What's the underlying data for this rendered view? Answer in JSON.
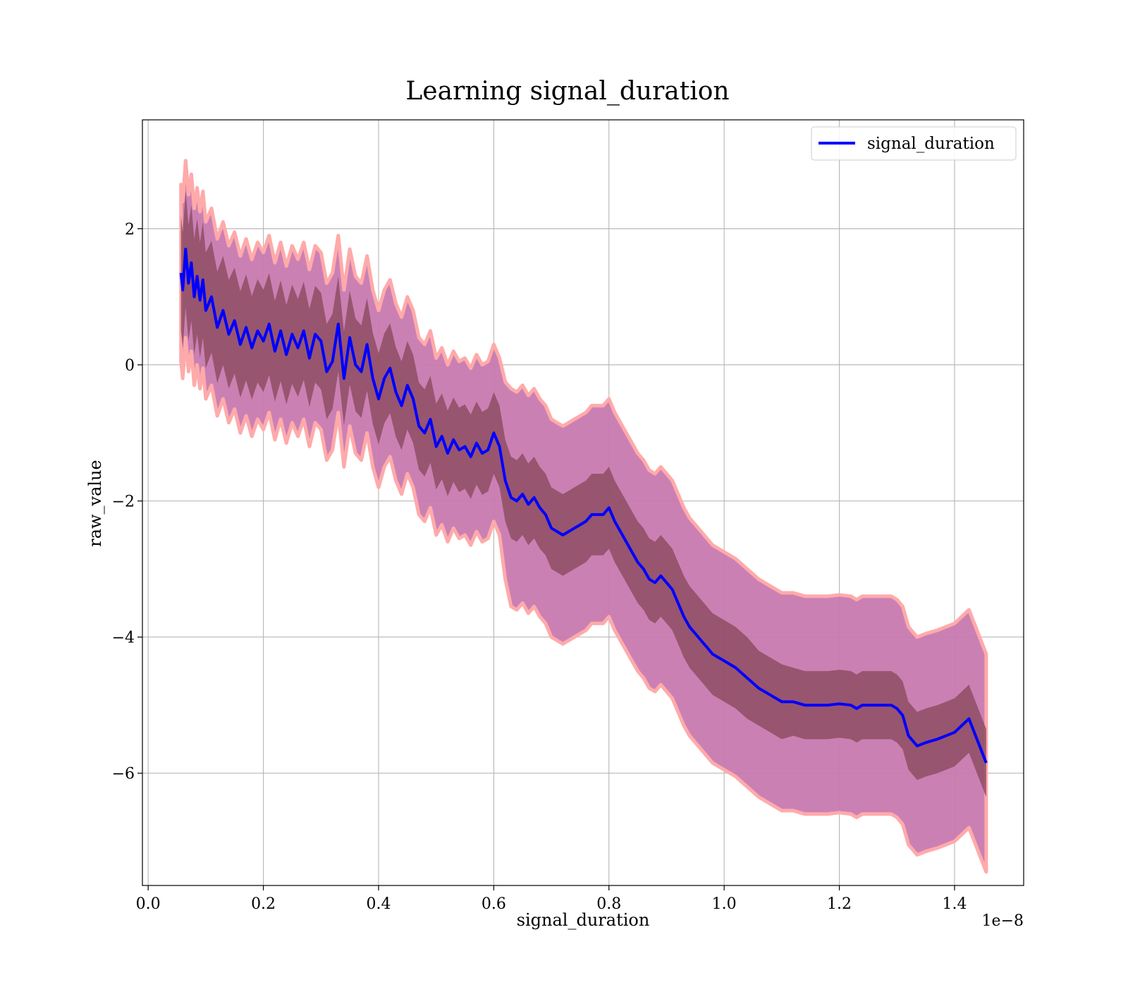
{
  "chart_data": {
    "type": "line",
    "title": "Learning signal_duration",
    "xlabel": "signal_duration",
    "ylabel": "raw_value",
    "x_offset_label": "1e−8",
    "xlim": [
      -0.01,
      1.52
    ],
    "ylim": [
      -7.65,
      3.6
    ],
    "x_ticks": [
      0.0,
      0.2,
      0.4,
      0.6,
      0.8,
      1.0,
      1.2,
      1.4
    ],
    "x_tick_labels": [
      "0.0",
      "0.2",
      "0.4",
      "0.6",
      "0.8",
      "1.0",
      "1.2",
      "1.4"
    ],
    "y_ticks": [
      -6,
      -4,
      -2,
      0,
      2
    ],
    "y_tick_labels": [
      "−6",
      "−4",
      "−2",
      "0",
      "2"
    ],
    "grid": true,
    "legend": {
      "position": "top-right",
      "entries": [
        "signal_duration"
      ]
    },
    "colors": {
      "line": "#0000ff",
      "inner_band": "#8b4a5e",
      "outer_band": "#c879b0",
      "outer_edge": "#ffaaaa",
      "grid": "#b0b0b0"
    },
    "series": [
      {
        "name": "signal_duration",
        "x": [
          0.057,
          0.06,
          0.065,
          0.07,
          0.075,
          0.08,
          0.085,
          0.09,
          0.095,
          0.1,
          0.11,
          0.12,
          0.13,
          0.14,
          0.15,
          0.16,
          0.17,
          0.18,
          0.19,
          0.2,
          0.21,
          0.22,
          0.23,
          0.24,
          0.25,
          0.26,
          0.27,
          0.28,
          0.29,
          0.3,
          0.31,
          0.32,
          0.33,
          0.34,
          0.35,
          0.36,
          0.37,
          0.38,
          0.39,
          0.4,
          0.41,
          0.42,
          0.43,
          0.44,
          0.45,
          0.46,
          0.47,
          0.48,
          0.49,
          0.5,
          0.51,
          0.52,
          0.53,
          0.54,
          0.55,
          0.56,
          0.57,
          0.58,
          0.59,
          0.6,
          0.61,
          0.62,
          0.63,
          0.64,
          0.65,
          0.66,
          0.67,
          0.68,
          0.69,
          0.7,
          0.71,
          0.72,
          0.73,
          0.74,
          0.75,
          0.76,
          0.77,
          0.78,
          0.79,
          0.8,
          0.81,
          0.82,
          0.83,
          0.84,
          0.85,
          0.86,
          0.87,
          0.88,
          0.89,
          0.9,
          0.91,
          0.92,
          0.93,
          0.94,
          0.95,
          0.96,
          0.97,
          0.98,
          0.99,
          1.0,
          1.02,
          1.04,
          1.06,
          1.08,
          1.1,
          1.12,
          1.14,
          1.16,
          1.18,
          1.2,
          1.22,
          1.23,
          1.24,
          1.26,
          1.28,
          1.29,
          1.3,
          1.31,
          1.32,
          1.335,
          1.35,
          1.37,
          1.4,
          1.425,
          1.455
        ],
        "y": [
          1.35,
          1.1,
          1.7,
          1.2,
          1.5,
          1.0,
          1.3,
          0.95,
          1.25,
          0.8,
          1.0,
          0.55,
          0.8,
          0.45,
          0.65,
          0.3,
          0.55,
          0.25,
          0.5,
          0.35,
          0.6,
          0.2,
          0.5,
          0.15,
          0.45,
          0.25,
          0.5,
          0.1,
          0.45,
          0.35,
          -0.1,
          0.05,
          0.6,
          -0.2,
          0.4,
          0.0,
          -0.1,
          0.3,
          -0.2,
          -0.5,
          -0.2,
          -0.05,
          -0.4,
          -0.6,
          -0.3,
          -0.5,
          -0.9,
          -1.0,
          -0.8,
          -1.2,
          -1.05,
          -1.3,
          -1.1,
          -1.25,
          -1.2,
          -1.35,
          -1.15,
          -1.3,
          -1.25,
          -1.0,
          -1.2,
          -1.7,
          -1.95,
          -2.0,
          -1.9,
          -2.05,
          -1.95,
          -2.1,
          -2.2,
          -2.4,
          -2.45,
          -2.5,
          -2.45,
          -2.4,
          -2.35,
          -2.3,
          -2.2,
          -2.2,
          -2.2,
          -2.1,
          -2.3,
          -2.45,
          -2.6,
          -2.75,
          -2.9,
          -3.0,
          -3.15,
          -3.2,
          -3.1,
          -3.2,
          -3.3,
          -3.5,
          -3.7,
          -3.85,
          -3.95,
          -4.05,
          -4.15,
          -4.25,
          -4.3,
          -4.35,
          -4.45,
          -4.6,
          -4.75,
          -4.85,
          -4.95,
          -4.95,
          -5.0,
          -5.0,
          -5.0,
          -4.98,
          -5.0,
          -5.05,
          -5.0,
          -5.0,
          -5.0,
          -5.0,
          -5.05,
          -5.15,
          -5.45,
          -5.6,
          -5.55,
          -5.5,
          -5.4,
          -5.2,
          -5.85
        ],
        "sd_inner": [
          0.85,
          0.85,
          0.85,
          0.85,
          0.85,
          0.85,
          0.85,
          0.85,
          0.85,
          0.85,
          0.82,
          0.82,
          0.8,
          0.8,
          0.78,
          0.78,
          0.78,
          0.76,
          0.76,
          0.75,
          0.75,
          0.74,
          0.74,
          0.73,
          0.73,
          0.72,
          0.72,
          0.72,
          0.71,
          0.71,
          0.7,
          0.7,
          0.7,
          0.69,
          0.69,
          0.68,
          0.68,
          0.68,
          0.67,
          0.67,
          0.66,
          0.66,
          0.66,
          0.65,
          0.65,
          0.65,
          0.64,
          0.64,
          0.64,
          0.63,
          0.63,
          0.63,
          0.62,
          0.62,
          0.62,
          0.62,
          0.61,
          0.61,
          0.61,
          0.6,
          0.6,
          0.6,
          0.6,
          0.6,
          0.6,
          0.6,
          0.6,
          0.6,
          0.6,
          0.6,
          0.6,
          0.6,
          0.6,
          0.6,
          0.6,
          0.6,
          0.6,
          0.6,
          0.6,
          0.6,
          0.6,
          0.6,
          0.6,
          0.6,
          0.6,
          0.6,
          0.6,
          0.6,
          0.6,
          0.6,
          0.6,
          0.6,
          0.6,
          0.6,
          0.6,
          0.6,
          0.6,
          0.6,
          0.6,
          0.6,
          0.6,
          0.6,
          0.55,
          0.55,
          0.55,
          0.5,
          0.5,
          0.5,
          0.5,
          0.5,
          0.5,
          0.5,
          0.5,
          0.5,
          0.5,
          0.5,
          0.5,
          0.5,
          0.5,
          0.5,
          0.5,
          0.5,
          0.5,
          0.5,
          0.5
        ],
        "sd_outer": [
          1.3,
          1.3,
          1.3,
          1.3,
          1.3,
          1.3,
          1.3,
          1.3,
          1.3,
          1.3,
          1.3,
          1.3,
          1.3,
          1.3,
          1.3,
          1.3,
          1.3,
          1.3,
          1.3,
          1.3,
          1.3,
          1.3,
          1.3,
          1.3,
          1.3,
          1.3,
          1.3,
          1.3,
          1.3,
          1.3,
          1.3,
          1.3,
          1.3,
          1.3,
          1.3,
          1.3,
          1.3,
          1.3,
          1.3,
          1.3,
          1.3,
          1.3,
          1.3,
          1.3,
          1.3,
          1.3,
          1.3,
          1.3,
          1.3,
          1.3,
          1.3,
          1.3,
          1.3,
          1.3,
          1.3,
          1.3,
          1.3,
          1.3,
          1.3,
          1.3,
          1.3,
          1.45,
          1.6,
          1.6,
          1.6,
          1.6,
          1.6,
          1.6,
          1.6,
          1.6,
          1.6,
          1.6,
          1.6,
          1.6,
          1.6,
          1.6,
          1.6,
          1.6,
          1.6,
          1.6,
          1.6,
          1.6,
          1.6,
          1.6,
          1.6,
          1.6,
          1.6,
          1.6,
          1.6,
          1.6,
          1.6,
          1.6,
          1.6,
          1.6,
          1.6,
          1.6,
          1.6,
          1.6,
          1.6,
          1.6,
          1.6,
          1.6,
          1.6,
          1.6,
          1.6,
          1.6,
          1.6,
          1.6,
          1.6,
          1.6,
          1.6,
          1.6,
          1.6,
          1.6,
          1.6,
          1.6,
          1.6,
          1.6,
          1.6,
          1.6,
          1.6,
          1.6,
          1.6,
          1.6,
          1.6
        ]
      }
    ]
  }
}
